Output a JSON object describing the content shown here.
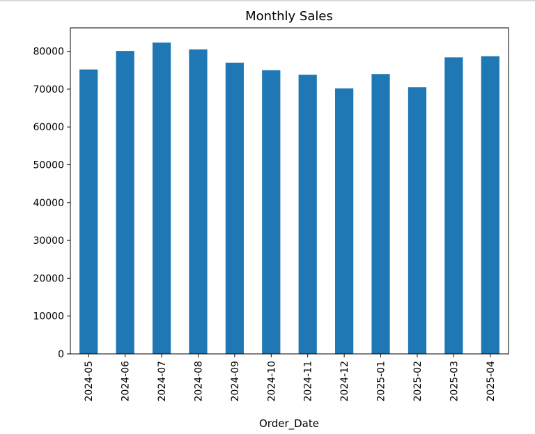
{
  "chart_data": {
    "type": "bar",
    "title": "Monthly Sales",
    "xlabel": "Order_Date",
    "ylabel": "",
    "categories": [
      "2024-05",
      "2024-06",
      "2024-07",
      "2024-08",
      "2024-09",
      "2024-10",
      "2024-11",
      "2024-12",
      "2025-01",
      "2025-02",
      "2025-03",
      "2025-04"
    ],
    "values": [
      75200,
      80100,
      82300,
      80500,
      77000,
      75000,
      73800,
      70200,
      74000,
      70500,
      78400,
      78700
    ],
    "yticks": [
      0,
      10000,
      20000,
      30000,
      40000,
      50000,
      60000,
      70000,
      80000
    ],
    "ylim": [
      0,
      86200
    ],
    "grid": false,
    "bar_color": "#1f77b4"
  }
}
